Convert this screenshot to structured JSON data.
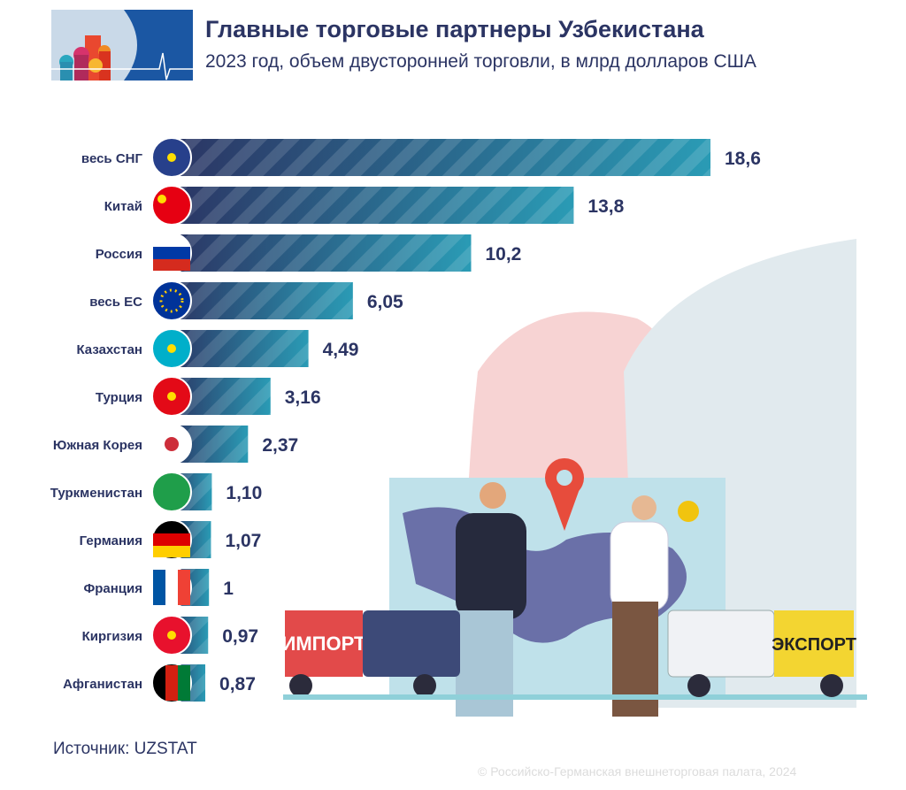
{
  "header": {
    "title": "Главные торговые партнеры Узбекистана",
    "subtitle": "2023 год, объем двусторонней торговли, в млрд долларов США"
  },
  "chart_data": {
    "type": "bar",
    "orientation": "horizontal",
    "title": "Главные торговые партнеры Узбекистана",
    "subtitle": "2023 год, объем двусторонней торговли, в млрд долларов США",
    "categories": [
      "весь СНГ",
      "Китай",
      "Россия",
      "весь ЕС",
      "Казахстан",
      "Турция",
      "Южная Корея",
      "Туркменистан",
      "Германия",
      "Франция",
      "Киргизия",
      "Афганистан"
    ],
    "values": [
      18.6,
      13.8,
      10.2,
      6.05,
      4.49,
      3.16,
      2.37,
      1.1,
      1.07,
      1,
      0.97,
      0.87
    ],
    "data_labels": [
      "18,6",
      "13,8",
      "10,2",
      "6,05",
      "4,49",
      "3,16",
      "2,37",
      "1,10",
      "1,07",
      "1",
      "0,97",
      "0,87"
    ],
    "icons": [
      "cis-emblem-icon",
      "china-flag-icon",
      "russia-flag-icon",
      "eu-flag-icon",
      "kazakhstan-flag-icon",
      "turkey-flag-icon",
      "south-korea-flag-icon",
      "turkmenistan-flag-icon",
      "germany-flag-icon",
      "france-flag-icon",
      "kyrgyzstan-flag-icon",
      "afghanistan-flag-icon"
    ],
    "bar_colors": [
      "#2b3463",
      "#2a9bb5"
    ],
    "grid": false
  },
  "illustration": {
    "import_label": "ИМПОРТ",
    "export_label": "ЭКСПОРТ"
  },
  "footer": {
    "source": "Источник: UZSTAT",
    "copyright": "© Российско-Германская внешнеторговая палата, 2024"
  }
}
